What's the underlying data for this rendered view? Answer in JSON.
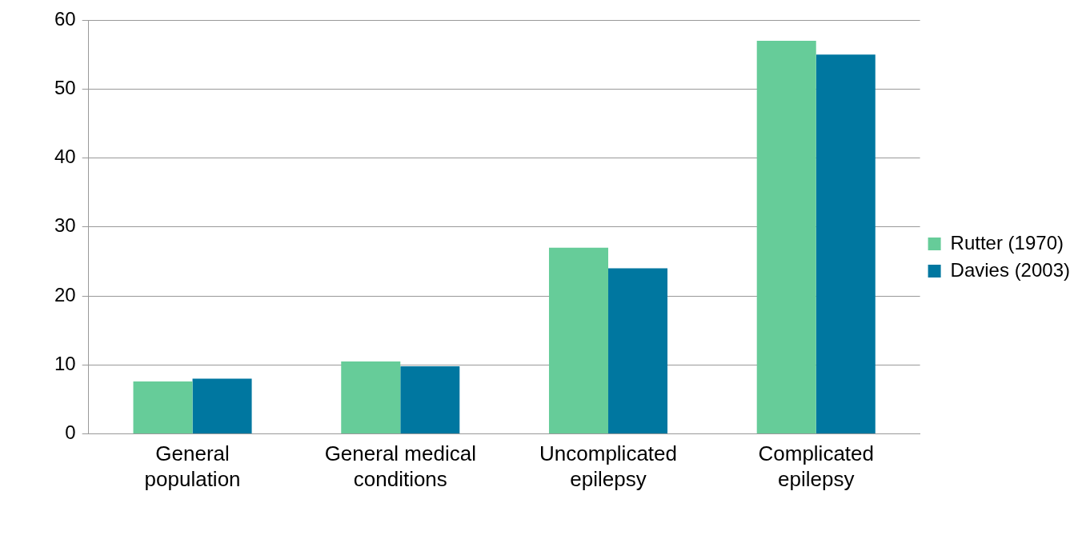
{
  "chart_data": {
    "type": "bar",
    "categories": [
      "General population",
      "General medical conditions",
      "Uncomplicated epilepsy",
      "Complicated epilepsy"
    ],
    "series": [
      {
        "name": "Rutter (1970)",
        "color": "#66cc99",
        "values": [
          7.6,
          10.5,
          27,
          57
        ]
      },
      {
        "name": "Davies (2003)",
        "color": "#0077a0",
        "values": [
          8,
          9.8,
          24,
          55
        ]
      }
    ],
    "ylim": [
      0,
      60
    ],
    "yticks": [
      0,
      10,
      20,
      30,
      40,
      50,
      60
    ],
    "grid": "y",
    "legend": "right"
  }
}
